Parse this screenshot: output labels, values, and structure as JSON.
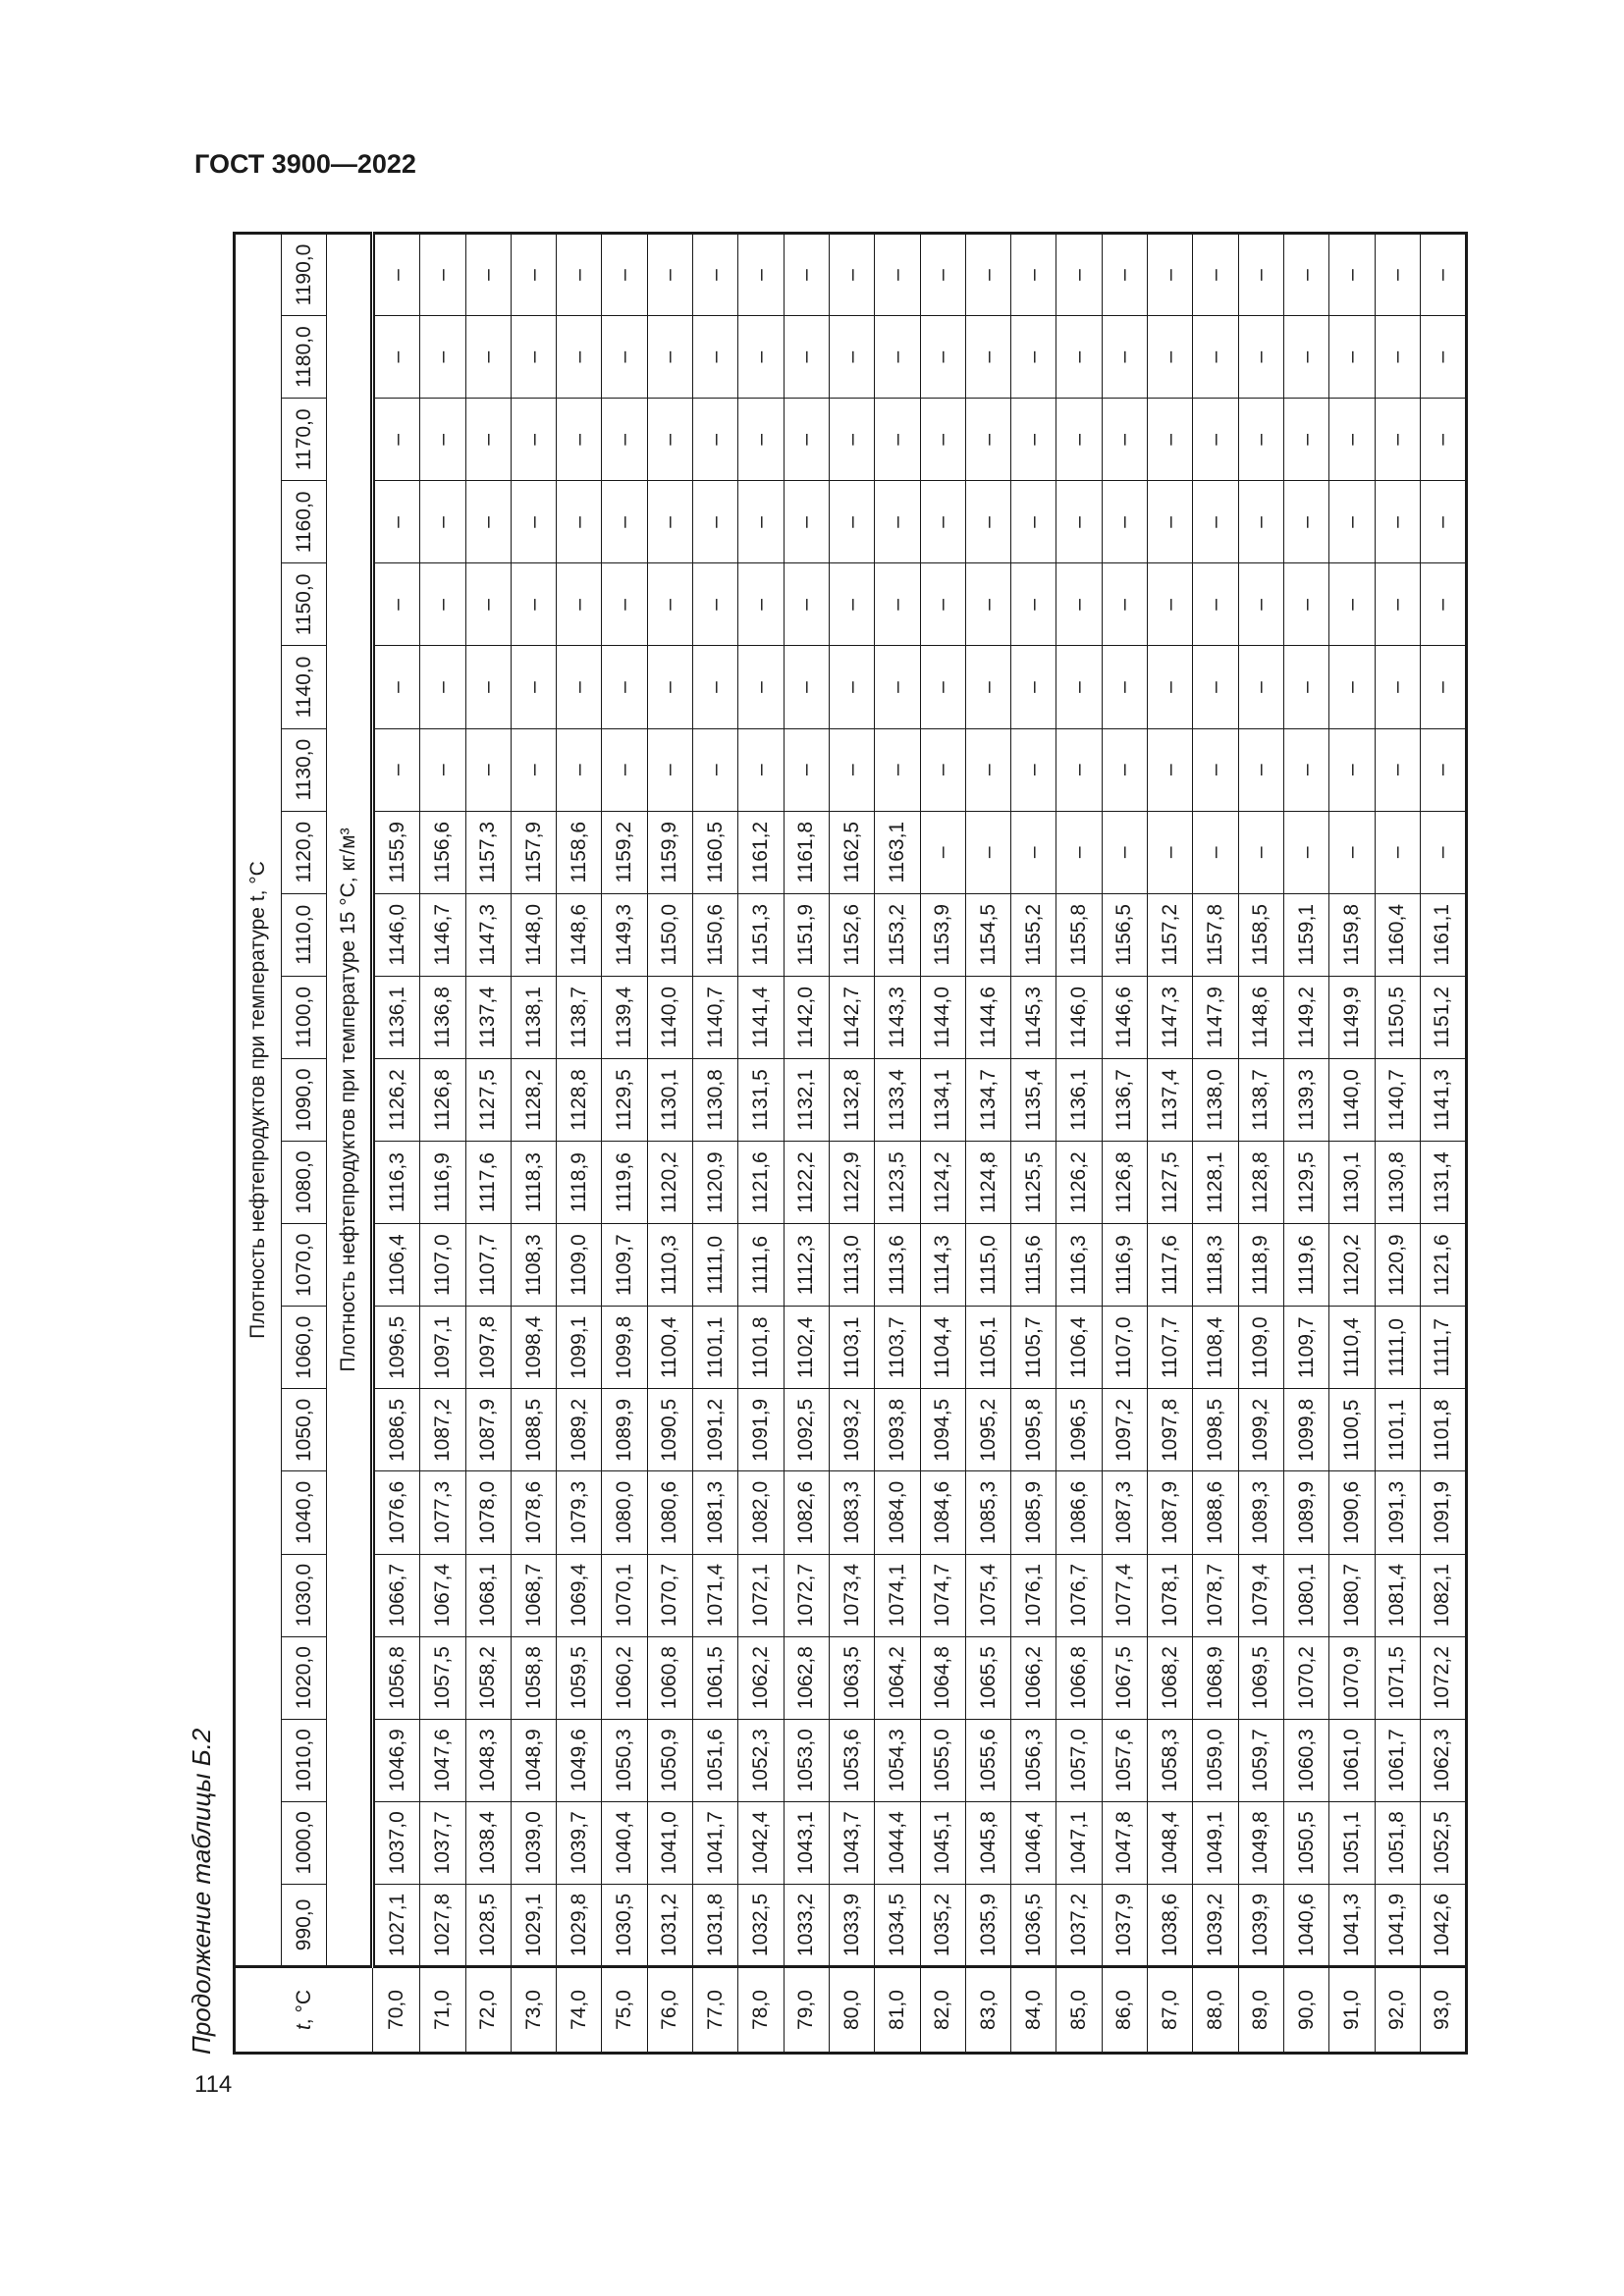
{
  "header": {
    "doc_title": "ГОСТ 3900—2022",
    "page_number": "114"
  },
  "caption": "Продолжение таблицы Б.2",
  "table": {
    "t_header_italic": "t",
    "t_header_unit": ", °C",
    "group_header": "Плотность нефтепродуктов при температуре t, °C",
    "sub_header": "Плотность нефтепродуктов при температуре 15 °C, кг/м³",
    "columns": [
      "990,0",
      "1000,0",
      "1010,0",
      "1020,0",
      "1030,0",
      "1040,0",
      "1050,0",
      "1060,0",
      "1070,0",
      "1080,0",
      "1090,0",
      "1100,0",
      "1110,0",
      "1120,0",
      "1130,0",
      "1140,0",
      "1150,0",
      "1160,0",
      "1170,0",
      "1180,0",
      "1190,0"
    ],
    "rows": [
      {
        "t": "70,0",
        "v": [
          "1027,1",
          "1037,0",
          "1046,9",
          "1056,8",
          "1066,7",
          "1076,6",
          "1086,5",
          "1096,5",
          "1106,4",
          "1116,3",
          "1126,2",
          "1136,1",
          "1146,0",
          "1155,9",
          "–",
          "–",
          "–",
          "–",
          "–",
          "–",
          "–"
        ]
      },
      {
        "t": "71,0",
        "v": [
          "1027,8",
          "1037,7",
          "1047,6",
          "1057,5",
          "1067,4",
          "1077,3",
          "1087,2",
          "1097,1",
          "1107,0",
          "1116,9",
          "1126,8",
          "1136,8",
          "1146,7",
          "1156,6",
          "–",
          "–",
          "–",
          "–",
          "–",
          "–",
          "–"
        ]
      },
      {
        "t": "72,0",
        "v": [
          "1028,5",
          "1038,4",
          "1048,3",
          "1058,2",
          "1068,1",
          "1078,0",
          "1087,9",
          "1097,8",
          "1107,7",
          "1117,6",
          "1127,5",
          "1137,4",
          "1147,3",
          "1157,3",
          "–",
          "–",
          "–",
          "–",
          "–",
          "–",
          "–"
        ]
      },
      {
        "t": "73,0",
        "v": [
          "1029,1",
          "1039,0",
          "1048,9",
          "1058,8",
          "1068,7",
          "1078,6",
          "1088,5",
          "1098,4",
          "1108,3",
          "1118,3",
          "1128,2",
          "1138,1",
          "1148,0",
          "1157,9",
          "–",
          "–",
          "–",
          "–",
          "–",
          "–",
          "–"
        ]
      },
      {
        "t": "74,0",
        "v": [
          "1029,8",
          "1039,7",
          "1049,6",
          "1059,5",
          "1069,4",
          "1079,3",
          "1089,2",
          "1099,1",
          "1109,0",
          "1118,9",
          "1128,8",
          "1138,7",
          "1148,6",
          "1158,6",
          "–",
          "–",
          "–",
          "–",
          "–",
          "–",
          "–"
        ]
      },
      {
        "t": "75,0",
        "v": [
          "1030,5",
          "1040,4",
          "1050,3",
          "1060,2",
          "1070,1",
          "1080,0",
          "1089,9",
          "1099,8",
          "1109,7",
          "1119,6",
          "1129,5",
          "1139,4",
          "1149,3",
          "1159,2",
          "–",
          "–",
          "–",
          "–",
          "–",
          "–",
          "–"
        ]
      },
      {
        "t": "76,0",
        "v": [
          "1031,2",
          "1041,0",
          "1050,9",
          "1060,8",
          "1070,7",
          "1080,6",
          "1090,5",
          "1100,4",
          "1110,3",
          "1120,2",
          "1130,1",
          "1140,0",
          "1150,0",
          "1159,9",
          "–",
          "–",
          "–",
          "–",
          "–",
          "–",
          "–"
        ]
      },
      {
        "t": "77,0",
        "v": [
          "1031,8",
          "1041,7",
          "1051,6",
          "1061,5",
          "1071,4",
          "1081,3",
          "1091,2",
          "1101,1",
          "1111,0",
          "1120,9",
          "1130,8",
          "1140,7",
          "1150,6",
          "1160,5",
          "–",
          "–",
          "–",
          "–",
          "–",
          "–",
          "–"
        ]
      },
      {
        "t": "78,0",
        "v": [
          "1032,5",
          "1042,4",
          "1052,3",
          "1062,2",
          "1072,1",
          "1082,0",
          "1091,9",
          "1101,8",
          "1111,6",
          "1121,6",
          "1131,5",
          "1141,4",
          "1151,3",
          "1161,2",
          "–",
          "–",
          "–",
          "–",
          "–",
          "–",
          "–"
        ]
      },
      {
        "t": "79,0",
        "v": [
          "1033,2",
          "1043,1",
          "1053,0",
          "1062,8",
          "1072,7",
          "1082,6",
          "1092,5",
          "1102,4",
          "1112,3",
          "1122,2",
          "1132,1",
          "1142,0",
          "1151,9",
          "1161,8",
          "–",
          "–",
          "–",
          "–",
          "–",
          "–",
          "–"
        ]
      },
      {
        "t": "80,0",
        "v": [
          "1033,9",
          "1043,7",
          "1053,6",
          "1063,5",
          "1073,4",
          "1083,3",
          "1093,2",
          "1103,1",
          "1113,0",
          "1122,9",
          "1132,8",
          "1142,7",
          "1152,6",
          "1162,5",
          "–",
          "–",
          "–",
          "–",
          "–",
          "–",
          "–"
        ]
      },
      {
        "t": "81,0",
        "v": [
          "1034,5",
          "1044,4",
          "1054,3",
          "1064,2",
          "1074,1",
          "1084,0",
          "1093,8",
          "1103,7",
          "1113,6",
          "1123,5",
          "1133,4",
          "1143,3",
          "1153,2",
          "1163,1",
          "–",
          "–",
          "–",
          "–",
          "–",
          "–",
          "–"
        ]
      },
      {
        "t": "82,0",
        "v": [
          "1035,2",
          "1045,1",
          "1055,0",
          "1064,8",
          "1074,7",
          "1084,6",
          "1094,5",
          "1104,4",
          "1114,3",
          "1124,2",
          "1134,1",
          "1144,0",
          "1153,9",
          "–",
          "–",
          "–",
          "–",
          "–",
          "–",
          "–",
          "–"
        ]
      },
      {
        "t": "83,0",
        "v": [
          "1035,9",
          "1045,8",
          "1055,6",
          "1065,5",
          "1075,4",
          "1085,3",
          "1095,2",
          "1105,1",
          "1115,0",
          "1124,8",
          "1134,7",
          "1144,6",
          "1154,5",
          "–",
          "–",
          "–",
          "–",
          "–",
          "–",
          "–",
          "–"
        ]
      },
      {
        "t": "84,0",
        "v": [
          "1036,5",
          "1046,4",
          "1056,3",
          "1066,2",
          "1076,1",
          "1085,9",
          "1095,8",
          "1105,7",
          "1115,6",
          "1125,5",
          "1135,4",
          "1145,3",
          "1155,2",
          "–",
          "–",
          "–",
          "–",
          "–",
          "–",
          "–",
          "–"
        ]
      },
      {
        "t": "85,0",
        "v": [
          "1037,2",
          "1047,1",
          "1057,0",
          "1066,8",
          "1076,7",
          "1086,6",
          "1096,5",
          "1106,4",
          "1116,3",
          "1126,2",
          "1136,1",
          "1146,0",
          "1155,8",
          "–",
          "–",
          "–",
          "–",
          "–",
          "–",
          "–",
          "–"
        ]
      },
      {
        "t": "86,0",
        "v": [
          "1037,9",
          "1047,8",
          "1057,6",
          "1067,5",
          "1077,4",
          "1087,3",
          "1097,2",
          "1107,0",
          "1116,9",
          "1126,8",
          "1136,7",
          "1146,6",
          "1156,5",
          "–",
          "–",
          "–",
          "–",
          "–",
          "–",
          "–",
          "–"
        ]
      },
      {
        "t": "87,0",
        "v": [
          "1038,6",
          "1048,4",
          "1058,3",
          "1068,2",
          "1078,1",
          "1087,9",
          "1097,8",
          "1107,7",
          "1117,6",
          "1127,5",
          "1137,4",
          "1147,3",
          "1157,2",
          "–",
          "–",
          "–",
          "–",
          "–",
          "–",
          "–",
          "–"
        ]
      },
      {
        "t": "88,0",
        "v": [
          "1039,2",
          "1049,1",
          "1059,0",
          "1068,9",
          "1078,7",
          "1088,6",
          "1098,5",
          "1108,4",
          "1118,3",
          "1128,1",
          "1138,0",
          "1147,9",
          "1157,8",
          "–",
          "–",
          "–",
          "–",
          "–",
          "–",
          "–",
          "–"
        ]
      },
      {
        "t": "89,0",
        "v": [
          "1039,9",
          "1049,8",
          "1059,7",
          "1069,5",
          "1079,4",
          "1089,3",
          "1099,2",
          "1109,0",
          "1118,9",
          "1128,8",
          "1138,7",
          "1148,6",
          "1158,5",
          "–",
          "–",
          "–",
          "–",
          "–",
          "–",
          "–",
          "–"
        ]
      },
      {
        "t": "90,0",
        "v": [
          "1040,6",
          "1050,5",
          "1060,3",
          "1070,2",
          "1080,1",
          "1089,9",
          "1099,8",
          "1109,7",
          "1119,6",
          "1129,5",
          "1139,3",
          "1149,2",
          "1159,1",
          "–",
          "–",
          "–",
          "–",
          "–",
          "–",
          "–",
          "–"
        ]
      },
      {
        "t": "91,0",
        "v": [
          "1041,3",
          "1051,1",
          "1061,0",
          "1070,9",
          "1080,7",
          "1090,6",
          "1100,5",
          "1110,4",
          "1120,2",
          "1130,1",
          "1140,0",
          "1149,9",
          "1159,8",
          "–",
          "–",
          "–",
          "–",
          "–",
          "–",
          "–",
          "–"
        ]
      },
      {
        "t": "92,0",
        "v": [
          "1041,9",
          "1051,8",
          "1061,7",
          "1071,5",
          "1081,4",
          "1091,3",
          "1101,1",
          "1111,0",
          "1120,9",
          "1130,8",
          "1140,7",
          "1150,5",
          "1160,4",
          "–",
          "–",
          "–",
          "–",
          "–",
          "–",
          "–",
          "–"
        ]
      },
      {
        "t": "93,0",
        "v": [
          "1042,6",
          "1052,5",
          "1062,3",
          "1072,2",
          "1082,1",
          "1091,9",
          "1101,8",
          "1111,7",
          "1121,6",
          "1131,4",
          "1141,3",
          "1151,2",
          "1161,1",
          "–",
          "–",
          "–",
          "–",
          "–",
          "–",
          "–",
          "–"
        ]
      }
    ]
  }
}
